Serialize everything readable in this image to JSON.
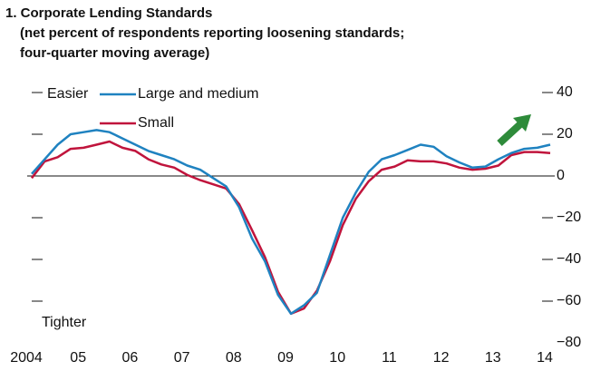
{
  "chart_data": {
    "type": "line",
    "title": "1. Corporate Lending Standards",
    "subtitle": [
      "(net percent of respondents reporting loosening standards;",
      "four-quarter moving average)"
    ],
    "annotations": [
      "Easier",
      "Tighter"
    ],
    "x": [
      2004,
      2004.25,
      2004.5,
      2004.75,
      2005,
      2005.25,
      2005.5,
      2005.75,
      2006,
      2006.25,
      2006.5,
      2006.75,
      2007,
      2007.25,
      2007.5,
      2007.75,
      2008,
      2008.25,
      2008.5,
      2008.75,
      2009,
      2009.25,
      2009.5,
      2009.75,
      2010,
      2010.25,
      2010.5,
      2010.75,
      2011,
      2011.25,
      2011.5,
      2011.75,
      2012,
      2012.25,
      2012.5,
      2012.75,
      2013,
      2013.25,
      2013.5,
      2013.75,
      2014
    ],
    "series": [
      {
        "name": "Large and medium",
        "color": "#1f82c0",
        "values": [
          1,
          8,
          15,
          20,
          21,
          22,
          21,
          18,
          15,
          12,
          10,
          8,
          5,
          3,
          -1,
          -5,
          -15,
          -30,
          -41,
          -57,
          -66,
          -62,
          -56,
          -38,
          -20,
          -8,
          2,
          8,
          10,
          12.5,
          15,
          14,
          9.5,
          6.5,
          4,
          4.5,
          8,
          11,
          13,
          13.5,
          15
        ]
      },
      {
        "name": "Small",
        "color": "#c0143c",
        "values": [
          -1,
          7,
          9,
          13,
          13.5,
          15,
          16.5,
          13.5,
          12,
          8,
          5.5,
          4,
          0.5,
          -2,
          -4,
          -6,
          -13.5,
          -26,
          -39,
          -55.5,
          -66,
          -63.5,
          -55,
          -41,
          -23.5,
          -11,
          -2.5,
          3,
          4.5,
          7.5,
          7,
          7,
          6,
          4,
          3,
          3.5,
          5,
          10,
          11.5,
          11.5,
          11
        ]
      }
    ],
    "xlim": [
      2004,
      2014
    ],
    "xticks": [
      {
        "value": 2004,
        "label": "2004"
      },
      {
        "value": 2005,
        "label": "05"
      },
      {
        "value": 2006,
        "label": "06"
      },
      {
        "value": 2007,
        "label": "07"
      },
      {
        "value": 2008,
        "label": "08"
      },
      {
        "value": 2009,
        "label": "09"
      },
      {
        "value": 2010,
        "label": "10"
      },
      {
        "value": 2011,
        "label": "11"
      },
      {
        "value": 2012,
        "label": "12"
      },
      {
        "value": 2013,
        "label": "13"
      },
      {
        "value": 2014,
        "label": "14"
      }
    ],
    "ylim": [
      -80,
      40
    ],
    "yticks": [
      40,
      20,
      0,
      {
        "value": -20,
        "label": "−20"
      },
      {
        "value": -40,
        "label": "−40"
      },
      {
        "value": -60,
        "label": "−60"
      },
      {
        "value": -80,
        "label": "−80"
      }
    ]
  }
}
